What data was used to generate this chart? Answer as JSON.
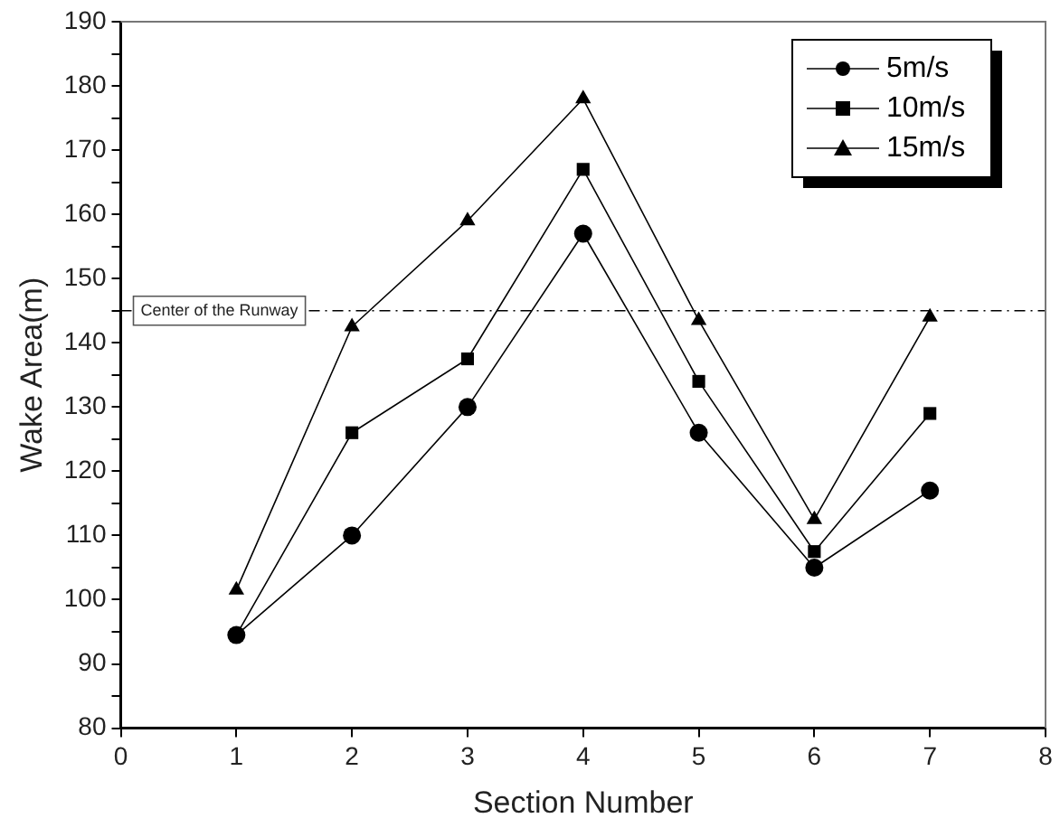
{
  "chart_data": {
    "type": "line",
    "xlabel": "Section Number",
    "ylabel": "Wake Area(m)",
    "x": [
      1,
      2,
      3,
      4,
      5,
      6,
      7
    ],
    "series": [
      {
        "name": "5m/s",
        "color": "#000000",
        "marker": "circle",
        "values": [
          94.5,
          110,
          130,
          157,
          126,
          105,
          117
        ]
      },
      {
        "name": "10m/s",
        "color": "#000000",
        "marker": "square",
        "values": [
          94.5,
          126,
          137.5,
          167,
          134,
          107.5,
          129
        ]
      },
      {
        "name": "15m/s",
        "color": "#000000",
        "marker": "triangle",
        "values": [
          101.5,
          142.5,
          159,
          178,
          143.5,
          112.5,
          144
        ]
      }
    ],
    "xlim": [
      0,
      8
    ],
    "xticks": [
      0,
      1,
      2,
      3,
      4,
      5,
      6,
      7,
      8
    ],
    "ylim": [
      80,
      190
    ],
    "yticks": [
      80,
      {
        "value": 85,
        "label": null
      },
      90,
      {
        "value": 95,
        "label": null
      },
      100,
      {
        "value": 105,
        "label": null
      },
      110,
      {
        "value": 115,
        "label": null
      },
      120,
      {
        "value": 125,
        "label": null
      },
      130,
      {
        "value": 135,
        "label": null
      },
      140,
      {
        "value": 145,
        "label": null
      },
      150,
      {
        "value": 155,
        "label": null
      },
      160,
      {
        "value": 165,
        "label": null
      },
      170,
      {
        "value": 175,
        "label": null
      },
      180,
      {
        "value": 185,
        "label": null
      },
      190
    ],
    "ref_lines": [
      {
        "axis": "y",
        "value": 145,
        "label": "Center of the Runway",
        "color": "#000000",
        "line_style": "dashdot"
      }
    ],
    "grid": false,
    "legend": "top right"
  }
}
